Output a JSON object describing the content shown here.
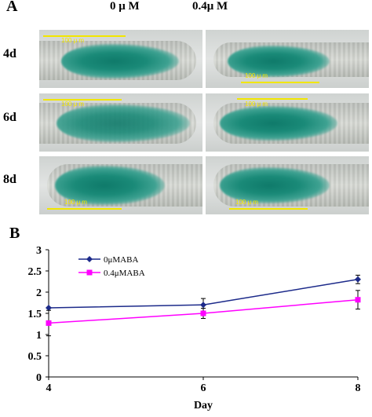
{
  "panel_a": {
    "letter": "A",
    "columns": [
      "0 μ M",
      "0.4μ M"
    ],
    "rows": [
      "4d",
      "6d",
      "8d"
    ],
    "scale_labels": {
      "r0c0": "100 μ m",
      "r0c1": "100 μ m",
      "r1c0": "100 μ m",
      "r1c1": "100 μ m",
      "r2c0": "100 μ m",
      "r2c1": "100 μ m"
    }
  },
  "panel_b": {
    "letter": "B"
  },
  "chart_data": {
    "type": "line",
    "x": [
      4,
      6,
      8
    ],
    "xlabel": "Day",
    "ylabel": "",
    "xlim": [
      4,
      8
    ],
    "ylim": [
      0,
      3
    ],
    "yticks": [
      0,
      0.5,
      1,
      1.5,
      2,
      2.5,
      3
    ],
    "xticks": [
      4,
      6,
      8
    ],
    "legend_position": "top-left",
    "series": [
      {
        "name": "0μMABA",
        "values": [
          1.63,
          1.7,
          2.3
        ],
        "errors": [
          0.0,
          0.15,
          0.1
        ],
        "color": "#1c2a8a",
        "marker": "diamond"
      },
      {
        "name": "0.4μMABA",
        "values": [
          1.27,
          1.5,
          1.82
        ],
        "errors": [
          0.3,
          0.12,
          0.22
        ],
        "color": "#ff00ff",
        "marker": "square"
      }
    ]
  }
}
